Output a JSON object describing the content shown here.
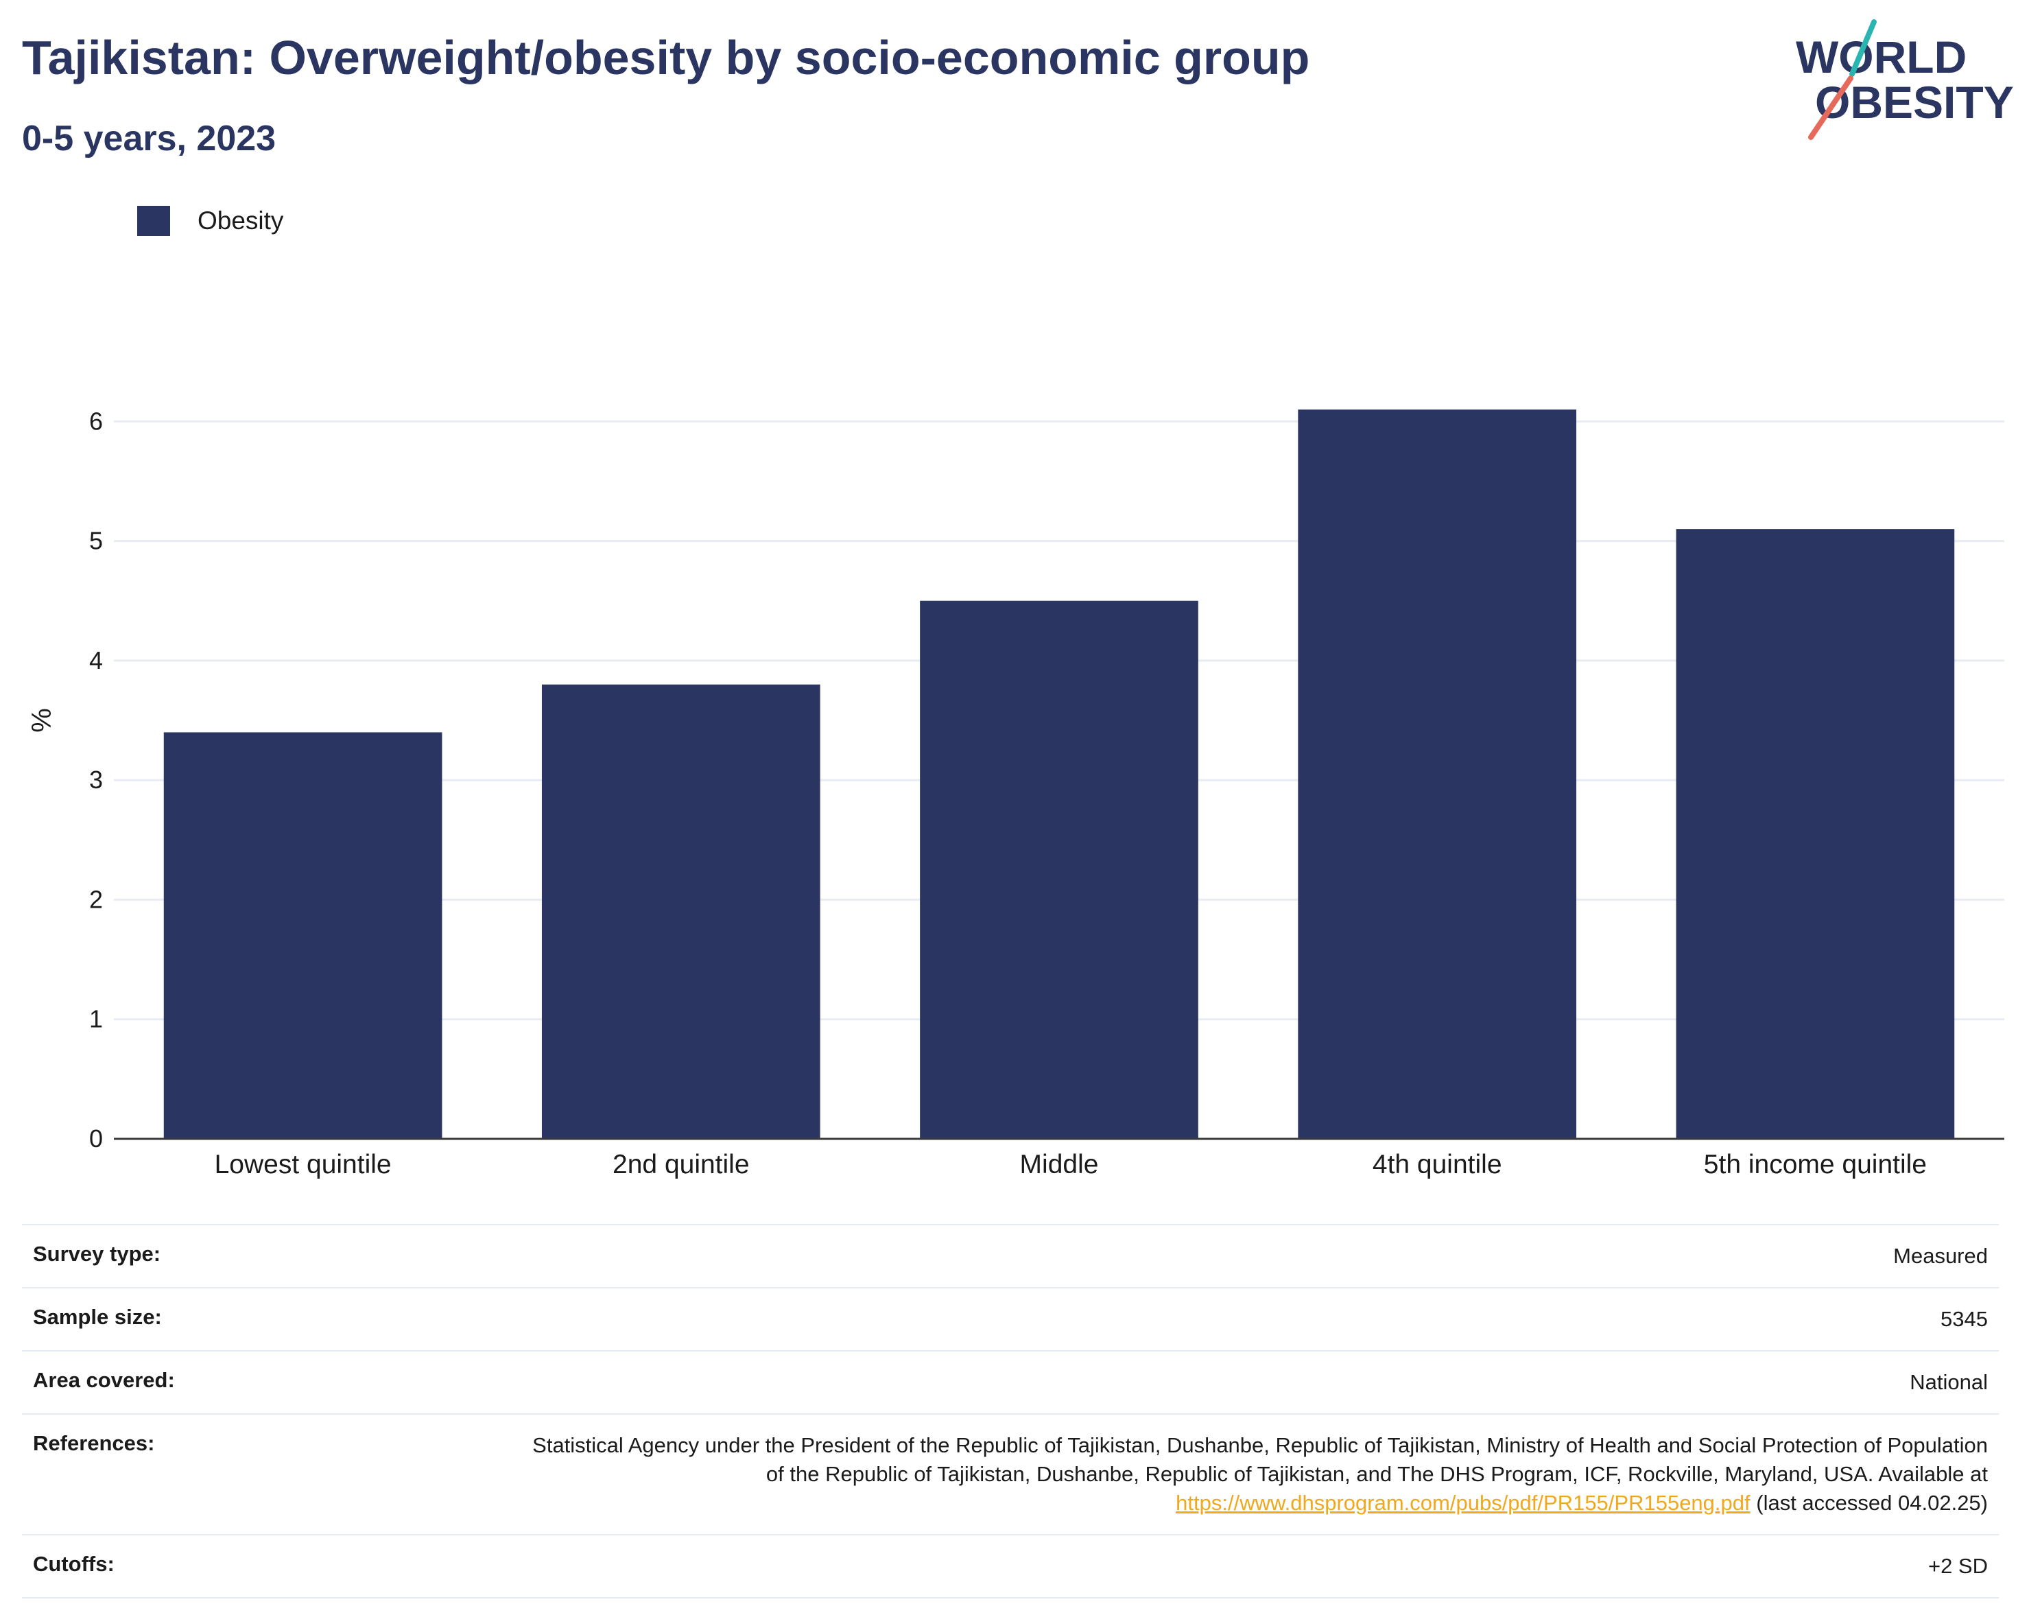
{
  "header": {
    "title": "Tajikistan: Overweight/obesity by socio-economic group",
    "subtitle": "0-5 years, 2023"
  },
  "logo": {
    "line1": "WORLD",
    "line2": "OBESITY",
    "accent_teal": "#2bb5b0",
    "accent_coral": "#e66a5c",
    "text_color": "#2a3562"
  },
  "legend": {
    "items": [
      {
        "label": "Obesity",
        "color": "#2a3562"
      }
    ]
  },
  "chart_data": {
    "type": "bar",
    "categories": [
      "Lowest quintile",
      "2nd quintile",
      "Middle",
      "4th quintile",
      "5th income quintile"
    ],
    "series": [
      {
        "name": "Obesity",
        "values": [
          3.4,
          3.8,
          4.5,
          6.1,
          5.1
        ],
        "color": "#2a3562"
      }
    ],
    "ylabel": "%",
    "xlabel": "",
    "ylim": [
      0,
      7
    ],
    "yticks": [
      0,
      1,
      2,
      3,
      4,
      5,
      6
    ],
    "grid": true,
    "legend_position": "top-left"
  },
  "info": {
    "survey_type": {
      "label": "Survey type:",
      "value": "Measured"
    },
    "sample_size": {
      "label": "Sample size:",
      "value": "5345"
    },
    "area_covered": {
      "label": "Area covered:",
      "value": "National"
    },
    "references": {
      "label": "References:",
      "text_before": "Statistical Agency under the President of the Republic of Tajikistan, Dushanbe, Republic of Tajikistan, Ministry of Health and Social Protection of Population of the Republic of Tajikistan, Dushanbe, Republic of Tajikistan, and The DHS Program, ICF, Rockville, Maryland, USA. Available at ",
      "link": "https://www.dhsprogram.com/pubs/pdf/PR155/PR155eng.pdf",
      "text_after": " (last accessed 04.02.25)"
    },
    "cutoffs": {
      "label": "Cutoffs:",
      "value": "+2 SD"
    }
  }
}
